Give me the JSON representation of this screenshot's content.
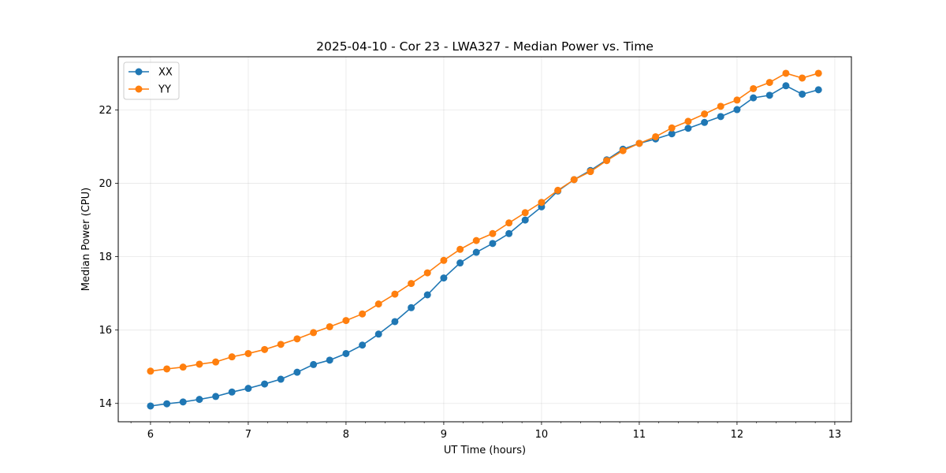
{
  "chart_data": {
    "type": "line",
    "title": "2025-04-10 - Cor 23 - LWA327 - Median Power vs. Time",
    "xlabel": "UT Time (hours)",
    "ylabel": "Median Power (CPU)",
    "xlim": [
      5.67,
      13.17
    ],
    "ylim": [
      13.5,
      23.45
    ],
    "xticks": [
      6,
      7,
      8,
      9,
      10,
      11,
      12,
      13
    ],
    "xtick_labels": [
      "6",
      "7",
      "8",
      "9",
      "10",
      "11",
      "12",
      "13"
    ],
    "yticks": [
      14,
      16,
      18,
      20,
      22
    ],
    "ytick_labels": [
      "14",
      "16",
      "18",
      "20",
      "22"
    ],
    "grid": true,
    "legend_position": "top-left",
    "x": [
      6.0,
      6.167,
      6.333,
      6.5,
      6.667,
      6.833,
      7.0,
      7.167,
      7.333,
      7.5,
      7.667,
      7.833,
      8.0,
      8.167,
      8.333,
      8.5,
      8.667,
      8.833,
      9.0,
      9.167,
      9.333,
      9.5,
      9.667,
      9.833,
      10.0,
      10.167,
      10.333,
      10.5,
      10.667,
      10.833,
      11.0,
      11.167,
      11.333,
      11.5,
      11.667,
      11.833,
      12.0,
      12.167,
      12.333,
      12.5,
      12.667,
      12.833
    ],
    "series": [
      {
        "name": "XX",
        "color": "#1f77b4",
        "values": [
          13.93,
          13.99,
          14.04,
          14.11,
          14.19,
          14.31,
          14.41,
          14.53,
          14.66,
          14.85,
          15.06,
          15.18,
          15.36,
          15.59,
          15.89,
          16.23,
          16.61,
          16.96,
          17.42,
          17.83,
          18.12,
          18.36,
          18.63,
          19.0,
          19.36,
          19.79,
          20.1,
          20.35,
          20.64,
          20.93,
          21.09,
          21.21,
          21.35,
          21.5,
          21.66,
          21.82,
          22.01,
          22.33,
          22.4,
          22.66,
          22.43,
          22.55
        ]
      },
      {
        "name": "YY",
        "color": "#ff7f0e",
        "values": [
          14.88,
          14.94,
          14.99,
          15.07,
          15.13,
          15.27,
          15.36,
          15.47,
          15.61,
          15.76,
          15.93,
          16.09,
          16.26,
          16.44,
          16.71,
          16.98,
          17.27,
          17.56,
          17.9,
          18.2,
          18.44,
          18.63,
          18.92,
          19.2,
          19.48,
          19.81,
          20.1,
          20.32,
          20.62,
          20.89,
          21.09,
          21.27,
          21.51,
          21.69,
          21.89,
          22.1,
          22.27,
          22.58,
          22.75,
          23.0,
          22.87,
          23.0
        ]
      }
    ]
  }
}
